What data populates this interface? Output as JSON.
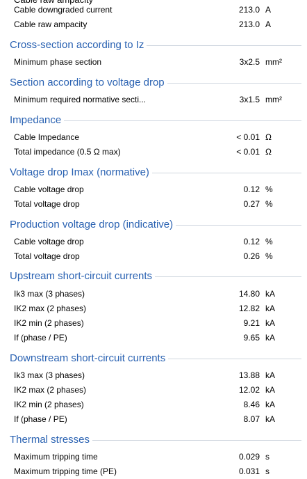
{
  "top_partial": {
    "label": "Cable raw ampacity"
  },
  "sections": [
    {
      "title": "",
      "rows": [
        {
          "label": "Cable downgraded current",
          "value": "213.0",
          "unit": "A"
        },
        {
          "label": "Cable raw ampacity",
          "value": "213.0",
          "unit": "A"
        }
      ]
    },
    {
      "title": "Cross-section according to Iz",
      "rows": [
        {
          "label": "Minimum phase section",
          "value": "3x2.5",
          "unit": "mm²"
        }
      ]
    },
    {
      "title": "Section according to voltage drop",
      "rows": [
        {
          "label": "Minimum required normative secti...",
          "value": "3x1.5",
          "unit": "mm²"
        }
      ]
    },
    {
      "title": "Impedance",
      "rows": [
        {
          "label": "Cable Impedance",
          "value": "< 0.01",
          "unit": "Ω"
        },
        {
          "label": "Total impedance (0.5 Ω max)",
          "value": "< 0.01",
          "unit": "Ω"
        }
      ]
    },
    {
      "title": "Voltage drop Imax (normative)",
      "rows": [
        {
          "label": "Cable voltage drop",
          "value": "0.12",
          "unit": "%"
        },
        {
          "label": "Total voltage drop",
          "value": "0.27",
          "unit": "%"
        }
      ]
    },
    {
      "title": "Production voltage drop (indicative)",
      "rows": [
        {
          "label": "Cable voltage drop",
          "value": "0.12",
          "unit": "%"
        },
        {
          "label": "Total voltage drop",
          "value": "0.26",
          "unit": "%"
        }
      ]
    },
    {
      "title": "Upstream short-circuit currents",
      "rows": [
        {
          "label": "Ik3 max (3 phases)",
          "value": "14.80",
          "unit": "kA"
        },
        {
          "label": "IK2 max (2 phases)",
          "value": "12.82",
          "unit": "kA"
        },
        {
          "label": "IK2 min (2 phases)",
          "value": "9.21",
          "unit": "kA"
        },
        {
          "label": "If (phase / PE)",
          "value": "9.65",
          "unit": "kA"
        }
      ]
    },
    {
      "title": "Downstream short-circuit currents",
      "rows": [
        {
          "label": "Ik3 max (3 phases)",
          "value": "13.88",
          "unit": "kA"
        },
        {
          "label": "IK2 max (2 phases)",
          "value": "12.02",
          "unit": "kA"
        },
        {
          "label": "IK2 min (2 phases)",
          "value": "8.46",
          "unit": "kA"
        },
        {
          "label": "If (phase / PE)",
          "value": "8.07",
          "unit": "kA"
        }
      ]
    },
    {
      "title": "Thermal stresses",
      "rows": [
        {
          "label": "Maximum tripping time",
          "value": "0.029",
          "unit": "s"
        },
        {
          "label": "Maximum tripping time (PE)",
          "value": "0.031",
          "unit": "s"
        }
      ]
    }
  ]
}
